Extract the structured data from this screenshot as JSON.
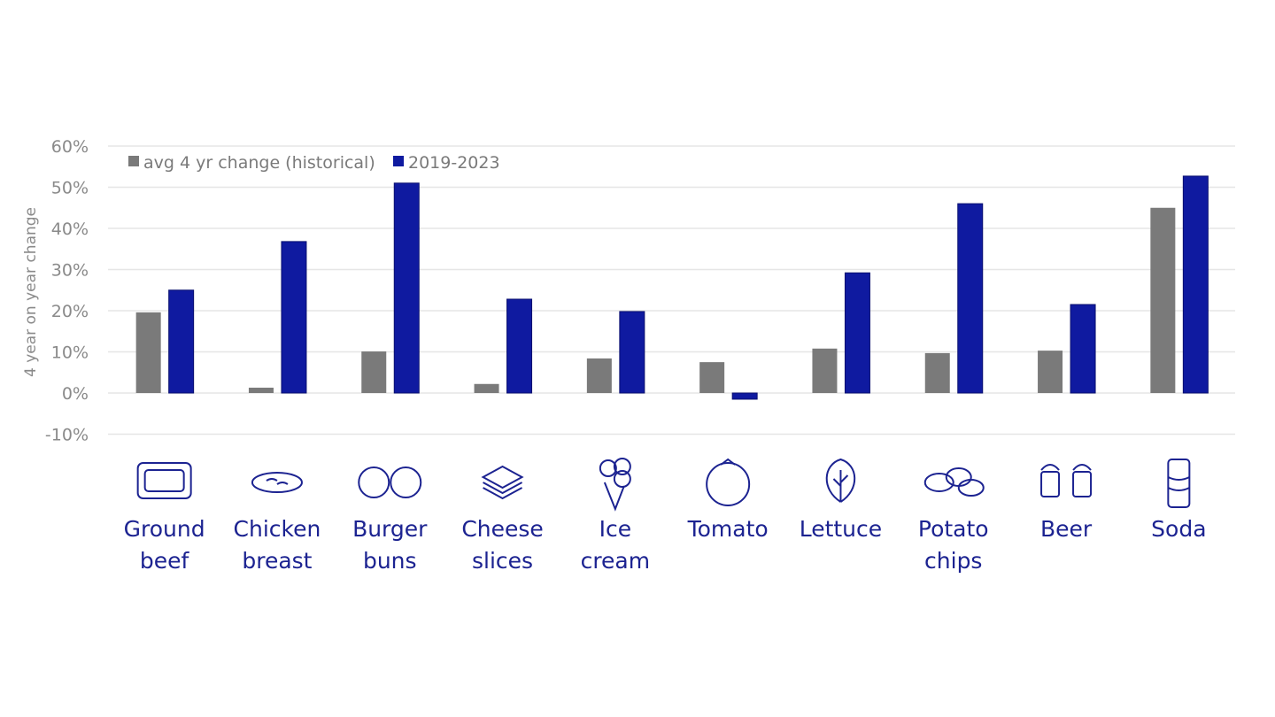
{
  "chart_data": {
    "type": "bar",
    "ylabel": "4 year on year change",
    "ylim": [
      -10,
      60
    ],
    "yticks": [
      "-10%",
      "0%",
      "10%",
      "20%",
      "30%",
      "40%",
      "50%",
      "60%"
    ],
    "grid": true,
    "legend_position": "top-left",
    "categories": [
      "Ground beef",
      "Chicken breast",
      "Burger buns",
      "Cheese slices",
      "Ice cream",
      "Tomato",
      "Lettuce",
      "Potato chips",
      "Beer",
      "Soda"
    ],
    "category_lines": [
      [
        "Ground",
        "beef"
      ],
      [
        "Chicken",
        "breast"
      ],
      [
        "Burger",
        "buns"
      ],
      [
        "Cheese",
        "slices"
      ],
      [
        "Ice",
        "cream"
      ],
      [
        "Tomato",
        ""
      ],
      [
        "Lettuce",
        ""
      ],
      [
        "Potato",
        "chips"
      ],
      [
        "Beer",
        ""
      ],
      [
        "Soda",
        ""
      ]
    ],
    "icons": [
      "ground-beef-icon",
      "chicken-breast-icon",
      "burger-buns-icon",
      "cheese-slices-icon",
      "ice-cream-icon",
      "tomato-icon",
      "lettuce-icon",
      "potato-chips-icon",
      "beer-icon",
      "soda-icon"
    ],
    "series": [
      {
        "name": "avg 4 yr change (historical)",
        "color": "#7a7a7a",
        "values": [
          19.6,
          1.3,
          10.1,
          2.2,
          8.4,
          7.5,
          10.8,
          9.7,
          10.3,
          45.0
        ]
      },
      {
        "name": "2019-2023",
        "color": "#0f1aa0",
        "values": [
          25.0,
          36.8,
          51.0,
          22.8,
          19.8,
          -1.5,
          29.2,
          46.0,
          21.5,
          52.7
        ]
      }
    ]
  }
}
